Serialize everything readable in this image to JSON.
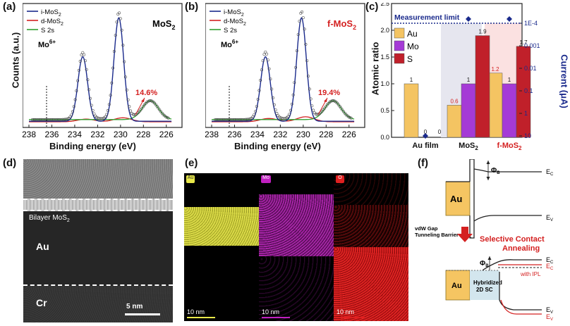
{
  "panels": {
    "a": "(a)",
    "b": "(b)",
    "c": "(c)",
    "d": "(d)",
    "e": "(e)",
    "f": "(f)"
  },
  "xps": {
    "ylabel": "Counts (a.u.)",
    "xlabel": "Binding energy (eV)",
    "xticks": [
      "238",
      "236",
      "234",
      "232",
      "230",
      "228",
      "226"
    ],
    "legend": [
      {
        "label": "i-MoS",
        "sub": "2",
        "color": "#1a2a8c"
      },
      {
        "label": "d-MoS",
        "sub": "2",
        "color": "#d42020"
      },
      {
        "label": "S 2s",
        "sub": "",
        "color": "#30a030"
      }
    ],
    "mo6": "Mo",
    "mo6sup": "6+",
    "a": {
      "sample": "MoS",
      "sample_sub": "2",
      "pct": "14.6%"
    },
    "b": {
      "sample": "f-MoS",
      "sample_sub": "2",
      "pct": "19.4%"
    }
  },
  "chart_data": {
    "type": "bar",
    "title": "",
    "categories": [
      "Au film",
      "MoS2",
      "f-MoS2"
    ],
    "cat_labels": [
      {
        "t": "Au film",
        "s": ""
      },
      {
        "t": "MoS",
        "s": "2"
      },
      {
        "t": "f-MoS",
        "s": "2"
      }
    ],
    "series": [
      {
        "name": "Au",
        "color": "#f4c462",
        "values": [
          1.0,
          0.6,
          1.2
        ],
        "labels": [
          "1",
          "0.6",
          "1.2"
        ],
        "label_colors": [
          "#111",
          "#d42020",
          "#d42020"
        ]
      },
      {
        "name": "Mo",
        "color": "#a53ad6",
        "values": [
          0,
          1.0,
          1.0
        ],
        "labels": [
          "0",
          "1",
          "1"
        ],
        "label_colors": [
          "#111",
          "#111",
          "#111"
        ]
      },
      {
        "name": "S",
        "color": "#c0202a",
        "values": [
          0,
          1.9,
          1.7
        ],
        "labels": [
          "0",
          "1.9",
          "1.7"
        ],
        "label_colors": [
          "#111",
          "#111",
          "#111"
        ]
      }
    ],
    "ylabel": "Atomic ratio",
    "ylim": [
      0,
      2.5
    ],
    "yticks": [
      "0.0",
      "0.5",
      "1.0",
      "1.5",
      "2.0",
      "2.5"
    ],
    "y2label": "Current (μA)",
    "y2ticks": [
      "1E-4",
      "0.001",
      "0.01",
      "0.1",
      "1",
      "10"
    ],
    "current_points": [
      10,
      0.0001,
      0.0001
    ],
    "measurement_limit_text": "Measurement limit"
  },
  "tem": {
    "layer": "Bilayer MoS",
    "layer_sub": "2",
    "au": "Au",
    "cr": "Cr",
    "scale": "5 nm"
  },
  "eds": [
    {
      "element": "Au",
      "color": "#e8e84a",
      "scale": "10 nm"
    },
    {
      "element": "Mo",
      "color": "#c020c0",
      "scale": "10 nm"
    },
    {
      "element": "O",
      "color": "#e02020",
      "scale": "10 nm"
    }
  ],
  "band": {
    "phi": "Φ",
    "phi_sub": "B",
    "ec": "E",
    "ec_sub": "C",
    "ev": "E",
    "ev_sub": "V",
    "au": "Au",
    "vdw1": "vdW Gap",
    "vdw2": "Tunneling Barrier",
    "sca1": "Selective Contact",
    "sca2": "Annealing",
    "hyb1": "Hybridized",
    "hyb2": "2D SC",
    "ipl": "with IPL"
  }
}
